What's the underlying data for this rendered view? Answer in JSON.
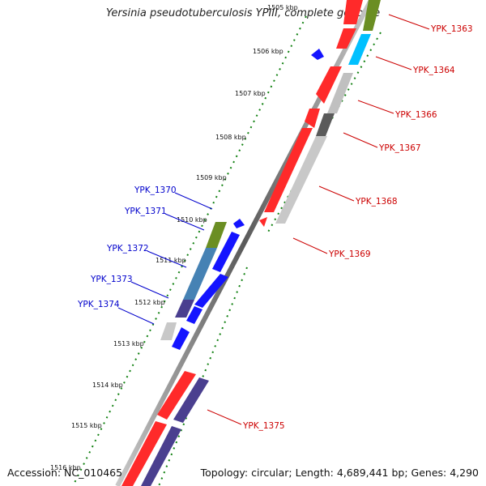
{
  "title": "Yersinia pseudotuberculosis YPIII, complete genome",
  "footer": {
    "accession": "Accession: NC_010465",
    "info": "Topology: circular; Length: 4,689,441 bp; Genes: 4,290"
  },
  "ticks": [
    "1505 kbp",
    "1506 kbp",
    "1507 kbp",
    "1508 kbp",
    "1509 kbp",
    "1510 kbp",
    "1511 kbp",
    "1512 kbp",
    "1513 kbp",
    "1514 kbp",
    "1515 kbp",
    "1516 kbp"
  ],
  "right_genes": [
    "YPK_1363",
    "YPK_1364",
    "YPK_1366",
    "YPK_1367",
    "YPK_1368",
    "YPK_1369",
    "YPK_1375"
  ],
  "left_genes": [
    "YPK_1370",
    "YPK_1371",
    "YPK_1372",
    "YPK_1373",
    "YPK_1374"
  ],
  "colors": {
    "forward_cds": "#ff0000",
    "reverse_cds": "#0000ff",
    "right_label": "#cc0000",
    "left_label": "#0000cc",
    "backbone": "#7f7f7f",
    "tick_dots": "#108010"
  }
}
